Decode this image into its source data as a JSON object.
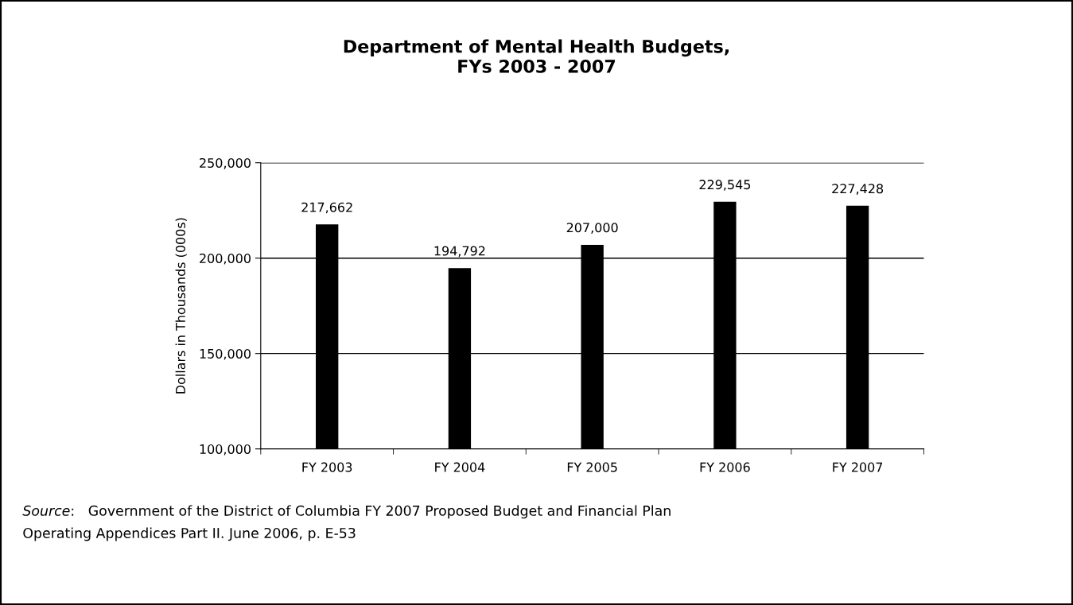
{
  "chart_data": {
    "type": "bar",
    "title": "Department of Mental Health Budgets,\nFYs 2003 - 2007",
    "ylabel": "Dollars in Thousands (000s)",
    "categories": [
      "FY 2003",
      "FY 2004",
      "FY 2005",
      "FY 2006",
      "FY 2007"
    ],
    "values": [
      217662,
      194792,
      207000,
      229545,
      227428
    ],
    "color": "#000000",
    "value_labels": [
      "217,662",
      "194,792",
      "207,000",
      "229,545",
      "227,428"
    ],
    "ylim": [
      100000,
      250000
    ],
    "yticks": [
      {
        "value": 100000,
        "label": "100,000"
      },
      {
        "value": 150000,
        "label": "150,000"
      },
      {
        "value": 200000,
        "label": "200,000"
      },
      {
        "value": 250000,
        "label": "250,000"
      }
    ],
    "grid": "y",
    "annotations": [
      "Source:   Government of the District of Columbia FY 2007 Proposed Budget and Financial Plan\nOperating Appendices Part II. June 2006, p. E-53"
    ]
  }
}
